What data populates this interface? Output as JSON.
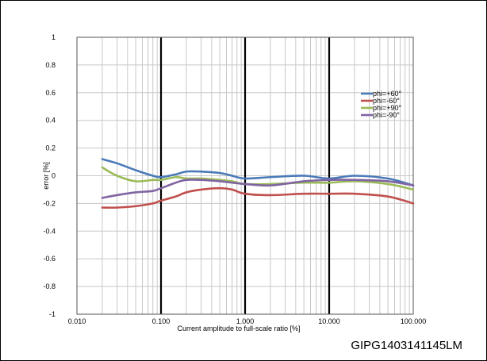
{
  "figure_code": "GIPG1403141145LM",
  "chart_data": {
    "type": "line",
    "xlabel": "Current amplitude to full-scale ratio [%]",
    "ylabel": "error [%]",
    "x_scale": "log",
    "xlim": [
      0.01,
      100
    ],
    "ylim": [
      -1,
      1
    ],
    "x_tick_labels": [
      "0.010",
      "0.100",
      "1.000",
      "10.000",
      "100.000"
    ],
    "x_tick_values": [
      0.01,
      0.1,
      1,
      10,
      100
    ],
    "y_tick_labels": [
      "1",
      "0.8",
      "0.6",
      "0.4",
      "0.2",
      "0",
      "-0.2",
      "-0.4",
      "-0.6",
      "-0.8",
      "-1"
    ],
    "y_tick_values": [
      1,
      0.8,
      0.6,
      0.4,
      0.2,
      0,
      -0.2,
      -0.4,
      -0.6,
      -0.8,
      -1
    ],
    "grid": true,
    "legend_position": "right",
    "series": [
      {
        "name": "phi=+60°",
        "color": "#4a7ab8",
        "x": [
          0.02,
          0.03,
          0.05,
          0.08,
          0.1,
          0.15,
          0.2,
          0.3,
          0.5,
          0.7,
          1,
          2,
          5,
          10,
          20,
          50,
          100
        ],
        "y": [
          0.12,
          0.09,
          0.04,
          0.0,
          -0.01,
          0.01,
          0.03,
          0.03,
          0.02,
          0.0,
          -0.02,
          -0.01,
          0.0,
          -0.02,
          0.0,
          -0.02,
          -0.07
        ]
      },
      {
        "name": "phi=-60°",
        "color": "#c0504d",
        "x": [
          0.02,
          0.03,
          0.05,
          0.08,
          0.1,
          0.15,
          0.2,
          0.3,
          0.5,
          0.7,
          1,
          2,
          5,
          10,
          20,
          50,
          100
        ],
        "y": [
          -0.23,
          -0.23,
          -0.22,
          -0.2,
          -0.18,
          -0.15,
          -0.12,
          -0.1,
          -0.09,
          -0.1,
          -0.13,
          -0.14,
          -0.13,
          -0.13,
          -0.13,
          -0.15,
          -0.2
        ]
      },
      {
        "name": "phi=+90°",
        "color": "#9bbb59",
        "x": [
          0.02,
          0.03,
          0.05,
          0.08,
          0.1,
          0.15,
          0.2,
          0.3,
          0.5,
          0.7,
          1,
          2,
          5,
          10,
          20,
          50,
          100
        ],
        "y": [
          0.06,
          0.0,
          -0.04,
          -0.03,
          -0.03,
          -0.01,
          -0.02,
          -0.02,
          -0.03,
          -0.04,
          -0.06,
          -0.06,
          -0.05,
          -0.05,
          -0.04,
          -0.06,
          -0.1
        ]
      },
      {
        "name": "phi=-90°",
        "color": "#8064a2",
        "x": [
          0.02,
          0.03,
          0.05,
          0.08,
          0.1,
          0.15,
          0.2,
          0.3,
          0.5,
          0.7,
          1,
          2,
          5,
          10,
          20,
          50,
          100
        ],
        "y": [
          -0.16,
          -0.14,
          -0.12,
          -0.11,
          -0.09,
          -0.05,
          -0.03,
          -0.03,
          -0.04,
          -0.05,
          -0.06,
          -0.07,
          -0.04,
          -0.03,
          -0.03,
          -0.04,
          -0.07
        ]
      }
    ]
  }
}
